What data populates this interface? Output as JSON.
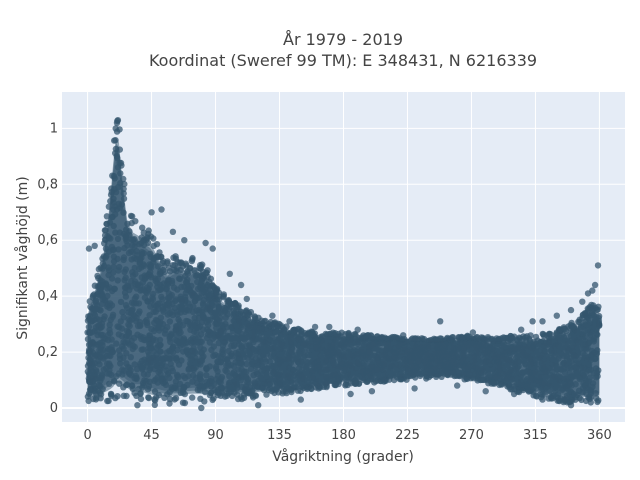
{
  "chart_data": {
    "type": "scatter",
    "title_line1": "År 1979 - 2019",
    "title_line2": "Koordinat (Sweref 99 TM): E 348431, N 6216339",
    "xlabel": "Vågriktning (grader)",
    "ylabel": "Signifikant våghöjd (m)",
    "xlim": [
      -18,
      378
    ],
    "ylim": [
      -0.05,
      1.13
    ],
    "xticks": [
      0,
      45,
      90,
      135,
      180,
      225,
      270,
      315,
      360
    ],
    "xtick_labels": [
      "0",
      "45",
      "90",
      "135",
      "180",
      "225",
      "270",
      "315",
      "360"
    ],
    "yticks": [
      0,
      0.2,
      0.4,
      0.6,
      0.8,
      1.0
    ],
    "ytick_labels": [
      "0",
      "0,2",
      "0,4",
      "0,6",
      "0,8",
      "1"
    ],
    "grid": true,
    "background": "#e5ecf6",
    "marker_color": "#34566d",
    "envelope": {
      "x": [
        0,
        5,
        10,
        15,
        18,
        20,
        22,
        25,
        28,
        32,
        38,
        45,
        50,
        55,
        60,
        65,
        70,
        75,
        80,
        85,
        90,
        95,
        100,
        110,
        120,
        135,
        150,
        165,
        180,
        200,
        225,
        250,
        270,
        290,
        300,
        315,
        325,
        335,
        345,
        350,
        355,
        360
      ],
      "upper": [
        0.36,
        0.45,
        0.55,
        0.75,
        0.95,
        1.05,
        1.03,
        0.85,
        0.72,
        0.68,
        0.66,
        0.63,
        0.58,
        0.52,
        0.54,
        0.55,
        0.52,
        0.55,
        0.53,
        0.5,
        0.43,
        0.41,
        0.39,
        0.36,
        0.33,
        0.3,
        0.28,
        0.27,
        0.27,
        0.26,
        0.25,
        0.25,
        0.26,
        0.25,
        0.26,
        0.26,
        0.27,
        0.29,
        0.32,
        0.35,
        0.38,
        0.36
      ],
      "lower": [
        0.01,
        0.02,
        0.02,
        0.02,
        0.02,
        0.03,
        0.03,
        0.03,
        0.03,
        0.02,
        0.02,
        0.01,
        0.01,
        0.01,
        0.01,
        0.01,
        0.02,
        0.02,
        0.02,
        0.02,
        0.03,
        0.03,
        0.03,
        0.03,
        0.04,
        0.05,
        0.06,
        0.07,
        0.08,
        0.09,
        0.1,
        0.11,
        0.1,
        0.08,
        0.06,
        0.04,
        0.03,
        0.02,
        0.02,
        0.02,
        0.02,
        0.02
      ]
    },
    "outliers": [
      {
        "x": 1,
        "y": 0.57
      },
      {
        "x": 5,
        "y": 0.58
      },
      {
        "x": 15,
        "y": 0.72
      },
      {
        "x": 16,
        "y": 0.74
      },
      {
        "x": 45,
        "y": 0.7
      },
      {
        "x": 52,
        "y": 0.71
      },
      {
        "x": 60,
        "y": 0.63
      },
      {
        "x": 68,
        "y": 0.6
      },
      {
        "x": 83,
        "y": 0.59
      },
      {
        "x": 88,
        "y": 0.57
      },
      {
        "x": 100,
        "y": 0.48
      },
      {
        "x": 108,
        "y": 0.44
      },
      {
        "x": 112,
        "y": 0.39
      },
      {
        "x": 130,
        "y": 0.33
      },
      {
        "x": 142,
        "y": 0.31
      },
      {
        "x": 160,
        "y": 0.29
      },
      {
        "x": 170,
        "y": 0.29
      },
      {
        "x": 190,
        "y": 0.28
      },
      {
        "x": 222,
        "y": 0.26
      },
      {
        "x": 248,
        "y": 0.31
      },
      {
        "x": 271,
        "y": 0.27
      },
      {
        "x": 305,
        "y": 0.28
      },
      {
        "x": 313,
        "y": 0.31
      },
      {
        "x": 320,
        "y": 0.31
      },
      {
        "x": 330,
        "y": 0.33
      },
      {
        "x": 340,
        "y": 0.35
      },
      {
        "x": 348,
        "y": 0.38
      },
      {
        "x": 352,
        "y": 0.41
      },
      {
        "x": 355,
        "y": 0.42
      },
      {
        "x": 357,
        "y": 0.44
      },
      {
        "x": 359,
        "y": 0.51
      },
      {
        "x": 35,
        "y": 0.01
      },
      {
        "x": 80,
        "y": 0.0
      },
      {
        "x": 120,
        "y": 0.01
      },
      {
        "x": 150,
        "y": 0.03
      },
      {
        "x": 185,
        "y": 0.05
      },
      {
        "x": 200,
        "y": 0.06
      },
      {
        "x": 230,
        "y": 0.07
      },
      {
        "x": 260,
        "y": 0.08
      },
      {
        "x": 280,
        "y": 0.06
      },
      {
        "x": 300,
        "y": 0.05
      },
      {
        "x": 320,
        "y": 0.03
      },
      {
        "x": 340,
        "y": 0.01
      }
    ]
  }
}
